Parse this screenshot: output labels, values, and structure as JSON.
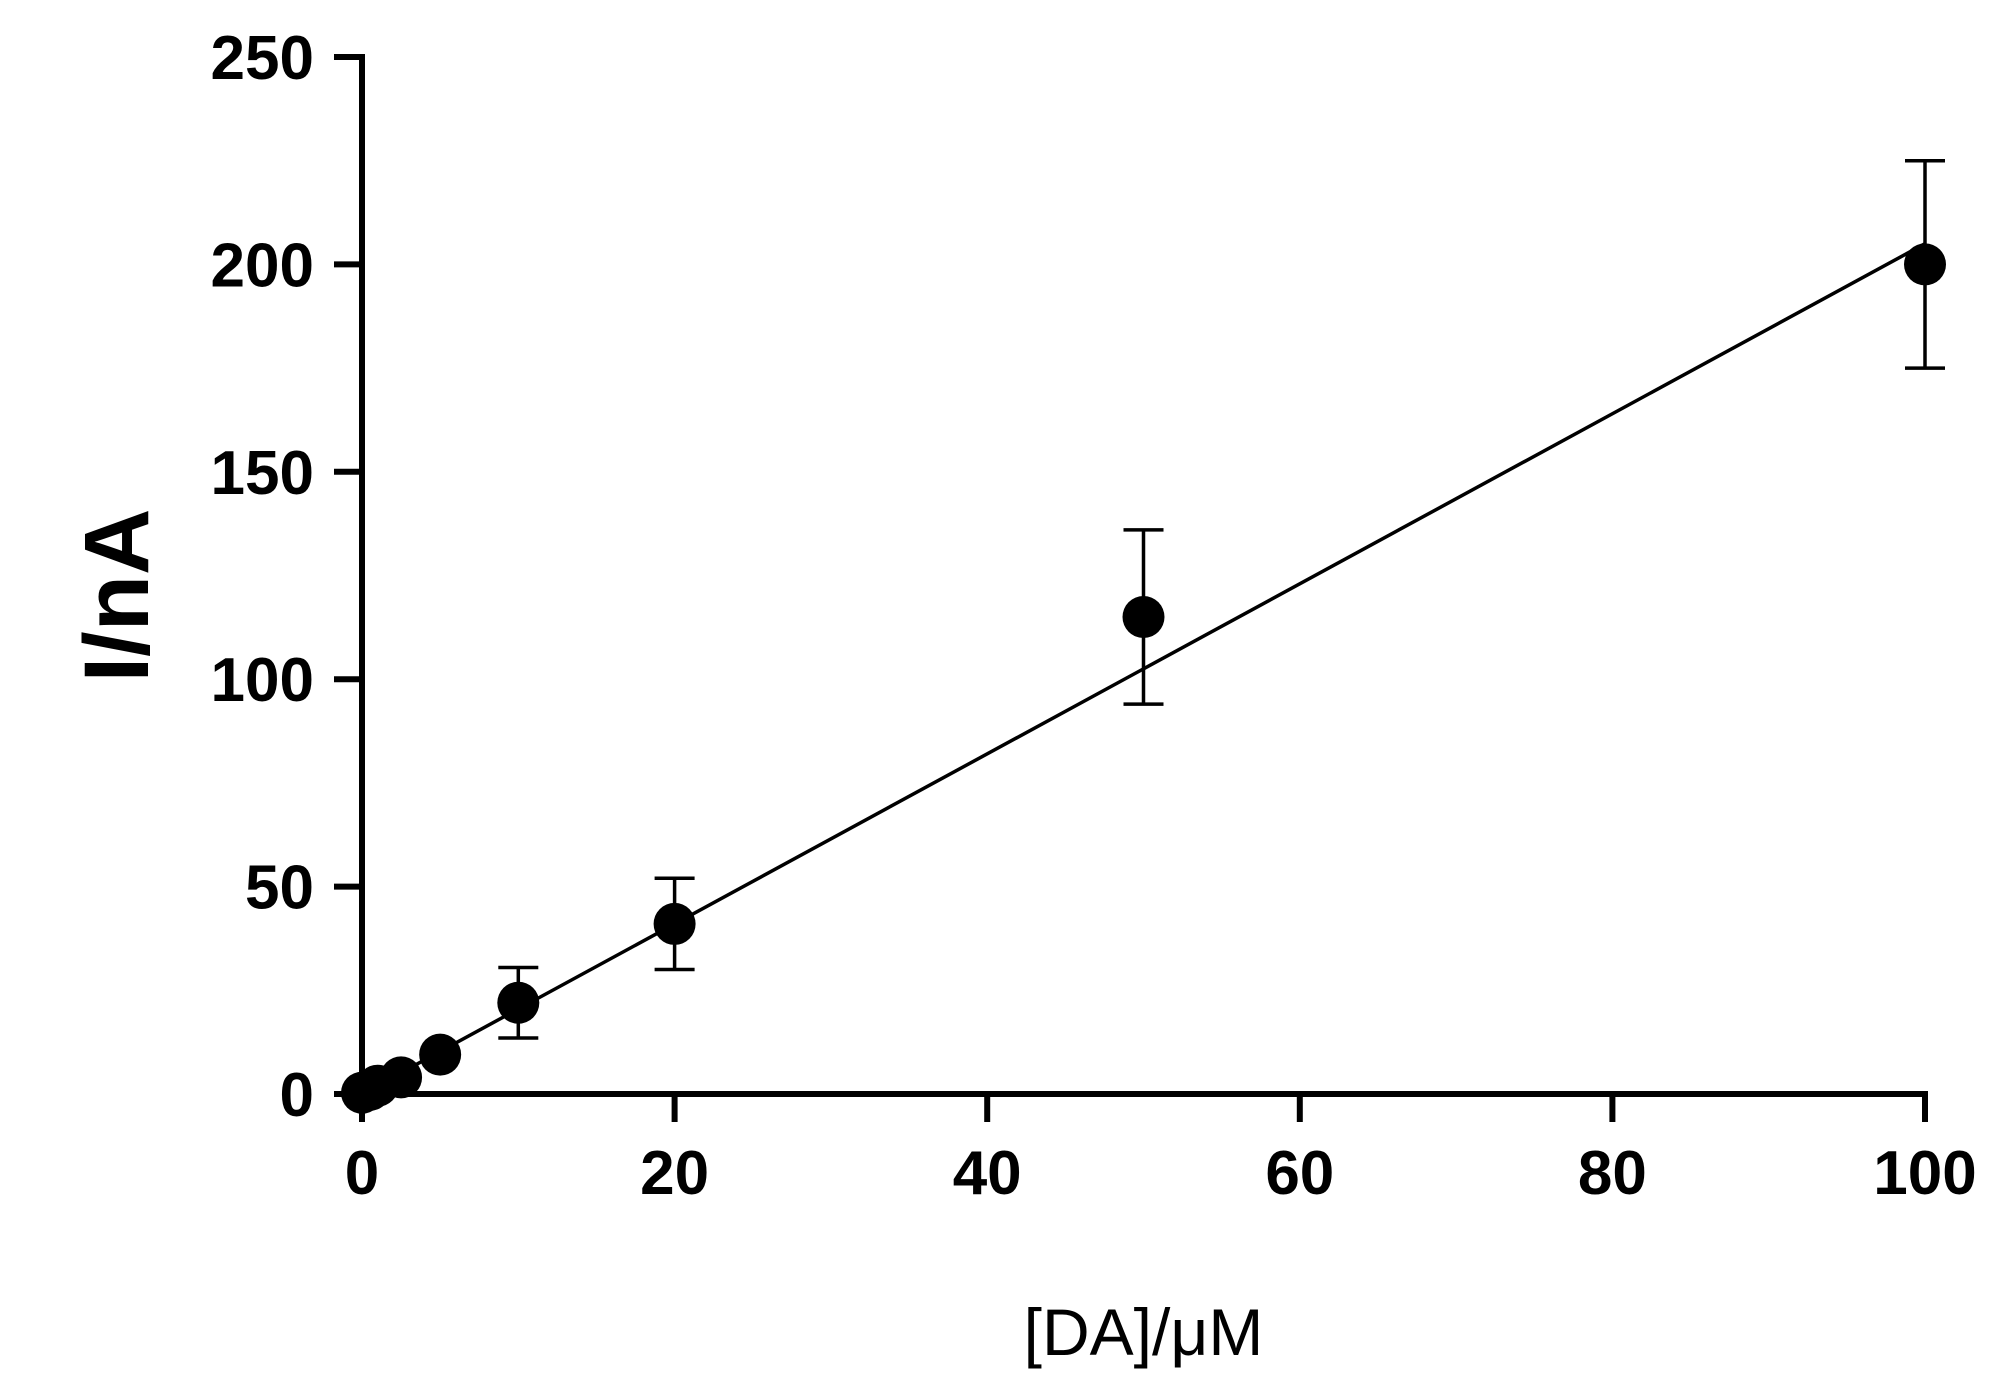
{
  "chart_data": {
    "type": "scatter",
    "title": "",
    "xlabel": "[DA]/μM",
    "ylabel": "I/nA",
    "xlim": [
      0,
      100
    ],
    "ylim": [
      0,
      250
    ],
    "xticks": [
      0,
      20,
      40,
      60,
      80,
      100
    ],
    "yticks": [
      0,
      50,
      100,
      150,
      200,
      250
    ],
    "xtick_labels": [
      "0",
      "20",
      "40",
      "60",
      "80",
      "100"
    ],
    "ytick_labels": [
      "0",
      "50",
      "100",
      "150",
      "200",
      "250"
    ],
    "grid": false,
    "legend": "none",
    "series": [
      {
        "x": [
          0,
          0.5,
          1,
          2.5,
          5,
          10,
          20,
          50,
          100
        ],
        "y": [
          0.3,
          1,
          2,
          4,
          9.5,
          22,
          41,
          115,
          200
        ],
        "yerr": [
          0,
          0,
          0,
          0,
          0,
          8.5,
          11,
          21,
          25
        ],
        "color": "#000000"
      }
    ],
    "fit_line": {
      "x": [
        0,
        100
      ],
      "y": [
        0,
        205
      ]
    }
  }
}
